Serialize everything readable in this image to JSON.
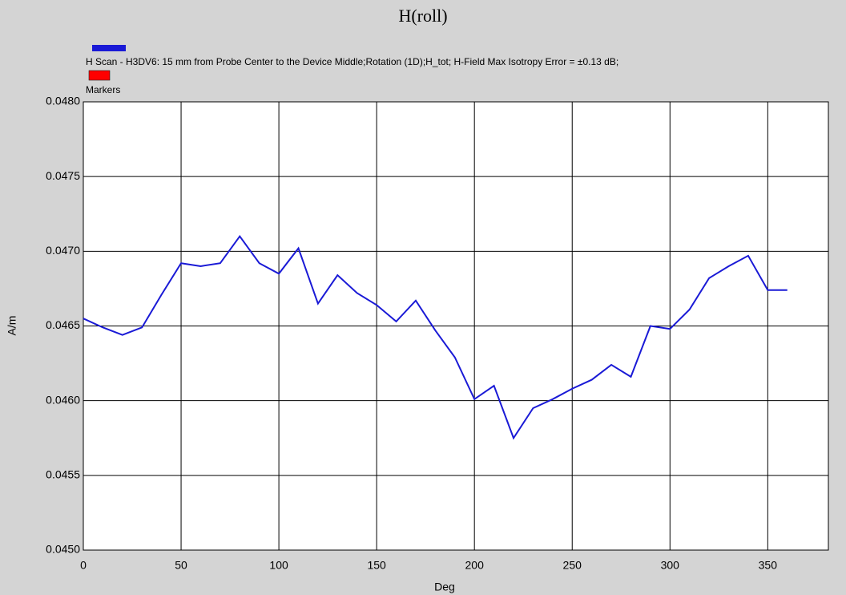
{
  "chart_data": {
    "type": "line",
    "title": "H(roll)",
    "x_label": "Deg",
    "y_label": "A/m",
    "x": [
      0,
      10,
      20,
      30,
      40,
      50,
      60,
      70,
      80,
      90,
      100,
      110,
      120,
      130,
      140,
      150,
      160,
      170,
      180,
      190,
      200,
      210,
      220,
      230,
      240,
      250,
      260,
      270,
      280,
      290,
      300,
      310,
      320,
      330,
      340,
      350,
      360
    ],
    "series": [
      {
        "name": "H Scan - H3DV6: 15 mm from Probe Center to the Device Middle;Rotation (1D);H_tot; H-Field Max Isotropy Error = ±0.13 dB;",
        "color": "#1a1ad6",
        "values": [
          0.04655,
          0.04649,
          0.04644,
          0.04649,
          0.04671,
          0.04692,
          0.0469,
          0.04692,
          0.0471,
          0.04692,
          0.04685,
          0.04702,
          0.04665,
          0.04684,
          0.04672,
          0.04664,
          0.04653,
          0.04667,
          0.04647,
          0.04629,
          0.04601,
          0.0461,
          0.04575,
          0.04595,
          0.04601,
          0.04608,
          0.04614,
          0.04624,
          0.04616,
          0.0465,
          0.04648,
          0.04661,
          0.04682,
          0.0469,
          0.04697,
          0.04674,
          0.04674
        ]
      }
    ],
    "markers": {
      "name": "Markers",
      "color": "#ff0000"
    },
    "xlim": [
      0,
      381
    ],
    "xticks": [
      0,
      50,
      100,
      150,
      200,
      250,
      300,
      350
    ],
    "ylim": [
      0.045,
      0.048
    ],
    "yticks": [
      {
        "value": 0.045,
        "label": "0.0450"
      },
      {
        "value": 0.0455,
        "label": "0.0455"
      },
      {
        "value": 0.046,
        "label": "0.0460"
      },
      {
        "value": 0.0465,
        "label": "0.0465"
      },
      {
        "value": 0.047,
        "label": "0.0470"
      },
      {
        "value": 0.0475,
        "label": "0.0475"
      },
      {
        "value": 0.048,
        "label": "0.0480"
      }
    ],
    "grid": true
  }
}
